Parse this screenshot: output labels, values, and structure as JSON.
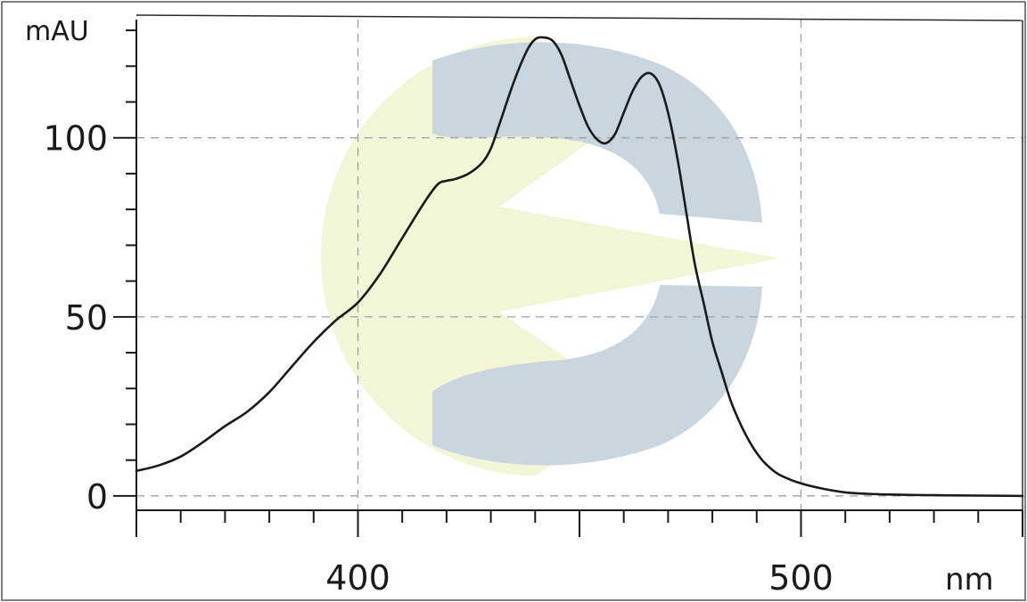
{
  "chart_data": {
    "type": "line",
    "title": "",
    "xlabel": "nm",
    "ylabel": "mAU",
    "xlim": [
      350,
      550
    ],
    "ylim": [
      -4,
      133
    ],
    "grid": true,
    "x_ticks": [
      400,
      500
    ],
    "y_ticks": [
      0,
      50,
      100
    ],
    "x": [
      350,
      355,
      360,
      365,
      370,
      375,
      380,
      385,
      390,
      395,
      400,
      405,
      410,
      415,
      418,
      420,
      422,
      425,
      428,
      430,
      432,
      435,
      438,
      440,
      442,
      444,
      446,
      448,
      450,
      452,
      454,
      456,
      458,
      460,
      462,
      464,
      466,
      468,
      470,
      472,
      474,
      476,
      478,
      480,
      482,
      484,
      486,
      488,
      490,
      492,
      495,
      500,
      505,
      510,
      515,
      520,
      530,
      540,
      550
    ],
    "series": [
      {
        "values": [
          7,
          8.5,
          11,
          15,
          19.5,
          23.5,
          29,
          36,
          43,
          49,
          54,
          62,
          72,
          82,
          87,
          88,
          88.5,
          90,
          93,
          97,
          104,
          115,
          124,
          127.5,
          128,
          127,
          123,
          116,
          109,
          103,
          99.5,
          98.5,
          101,
          107,
          113,
          117,
          118,
          115,
          107,
          95,
          80,
          65,
          54,
          43,
          35,
          27,
          21,
          16,
          12,
          9,
          6,
          3.5,
          2,
          1,
          0.6,
          0.4,
          0.2,
          0.1,
          0
        ]
      }
    ]
  },
  "watermark_colors": {
    "crescent": "#c9d6df",
    "wedge": "#f3f5d7"
  }
}
